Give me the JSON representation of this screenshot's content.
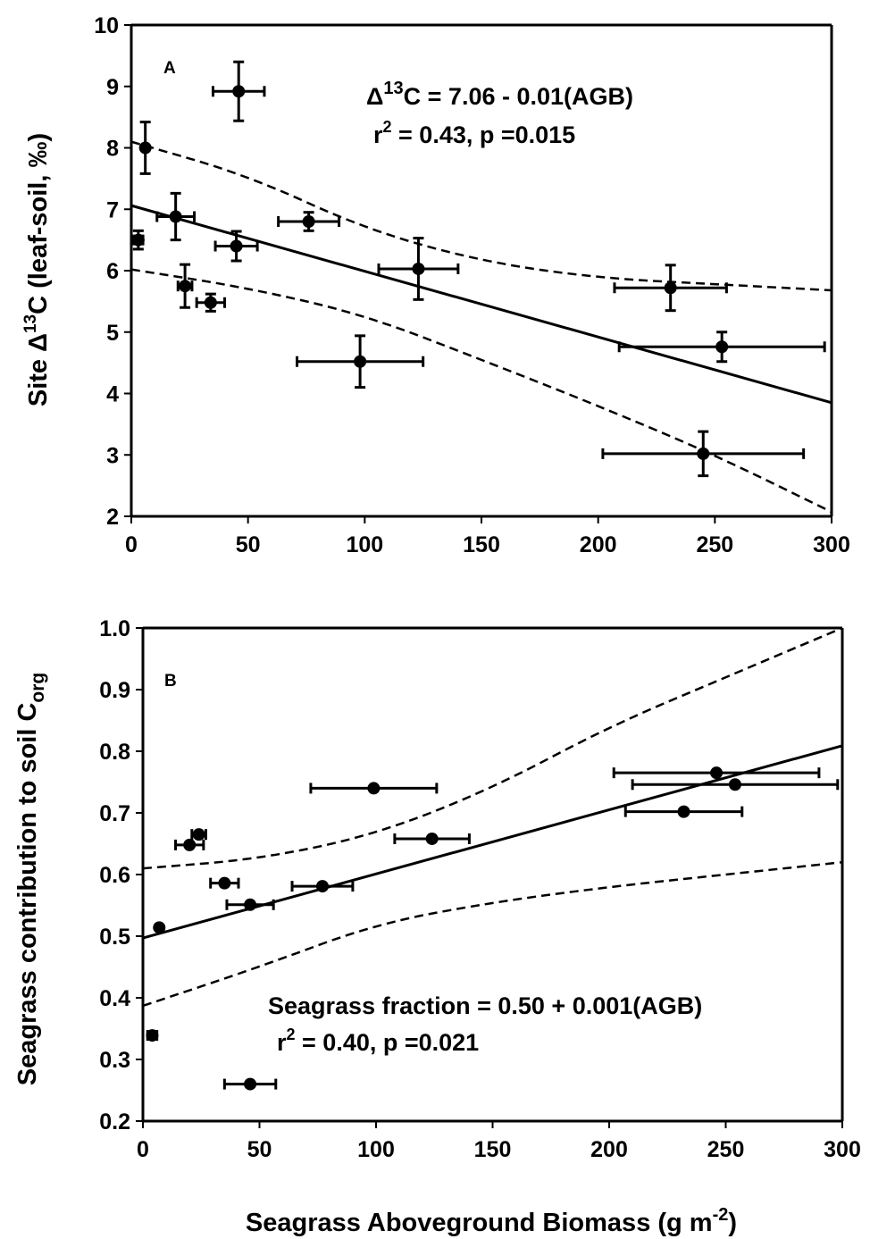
{
  "chart_data": [
    {
      "type": "scatter",
      "panel_label": "A",
      "xlim": [
        0,
        300
      ],
      "ylim": [
        2,
        10
      ],
      "xticks": [
        0,
        50,
        100,
        150,
        200,
        250,
        300
      ],
      "yticks": [
        2,
        3,
        4,
        5,
        6,
        7,
        8,
        9,
        10
      ],
      "ylabel": {
        "prefix": "Site ",
        "delta": "Δ",
        "sup": "13",
        "suffix": "C (leaf-soil, ‰)"
      },
      "equation": {
        "delta": "Δ",
        "sup": "13",
        "text": "C = 7.06 - 0.01(AGB)"
      },
      "stats": {
        "r": "r",
        "sup": "2",
        "text": " = 0.43, p =0.015"
      },
      "points": [
        {
          "x": 46,
          "y": 8.92,
          "xerr": 11,
          "yerr": 0.48
        },
        {
          "x": 6,
          "y": 8.0,
          "xerr": 0,
          "yerr": 0.42
        },
        {
          "x": 19,
          "y": 6.88,
          "xerr": 8,
          "yerr": 0.38
        },
        {
          "x": 76,
          "y": 6.8,
          "xerr": 13,
          "yerr": 0.15
        },
        {
          "x": 3,
          "y": 6.5,
          "xerr": 2,
          "yerr": 0.15
        },
        {
          "x": 45,
          "y": 6.4,
          "xerr": 9,
          "yerr": 0.24
        },
        {
          "x": 123,
          "y": 6.03,
          "xerr": 17,
          "yerr": 0.5
        },
        {
          "x": 23,
          "y": 5.75,
          "xerr": 3,
          "yerr": 0.35
        },
        {
          "x": 34,
          "y": 5.48,
          "xerr": 6,
          "yerr": 0.14
        },
        {
          "x": 231,
          "y": 5.72,
          "xerr": 24,
          "yerr": 0.37
        },
        {
          "x": 253,
          "y": 4.76,
          "xerr": 44,
          "yerr": 0.24
        },
        {
          "x": 98,
          "y": 4.52,
          "xerr": 27,
          "yerr": 0.42
        },
        {
          "x": 245,
          "y": 3.02,
          "xerr": 43,
          "yerr": 0.36
        }
      ],
      "fit": {
        "intercept": 7.06,
        "slope": -0.0107
      },
      "ci_upper": [
        [
          0,
          8.1
        ],
        [
          50,
          7.55
        ],
        [
          100,
          6.68
        ],
        [
          150,
          6.15
        ],
        [
          200,
          5.88
        ],
        [
          250,
          5.78
        ],
        [
          300,
          5.68
        ]
      ],
      "ci_lower": [
        [
          0,
          6.02
        ],
        [
          50,
          5.72
        ],
        [
          100,
          5.28
        ],
        [
          150,
          4.55
        ],
        [
          200,
          3.8
        ],
        [
          250,
          3.0
        ],
        [
          300,
          2.07
        ]
      ]
    },
    {
      "type": "scatter",
      "panel_label": "B",
      "xlim": [
        0,
        300
      ],
      "ylim": [
        0.2,
        1.0
      ],
      "xticks": [
        0,
        50,
        100,
        150,
        200,
        250,
        300
      ],
      "yticks": [
        0.2,
        0.3,
        0.4,
        0.5,
        0.6,
        0.7,
        0.8,
        0.9,
        1.0
      ],
      "ylabel": {
        "text": "Seagrass contribution to soil C",
        "sub": "org"
      },
      "xlabel": {
        "text": "Seagrass Aboveground Biomass (g m",
        "sup": "-2",
        "end": ")"
      },
      "equation": {
        "text": "Seagrass fraction = 0.50 + 0.001(AGB)"
      },
      "stats": {
        "r": "r",
        "sup": "2",
        "text": " = 0.40, p =0.021"
      },
      "points": [
        {
          "x": 99,
          "y": 0.74,
          "xerr": 27
        },
        {
          "x": 246,
          "y": 0.765,
          "xerr": 44
        },
        {
          "x": 254,
          "y": 0.746,
          "xerr": 44
        },
        {
          "x": 232,
          "y": 0.702,
          "xerr": 25
        },
        {
          "x": 24,
          "y": 0.665,
          "xerr": 3
        },
        {
          "x": 20,
          "y": 0.648,
          "xerr": 6
        },
        {
          "x": 124,
          "y": 0.658,
          "xerr": 16
        },
        {
          "x": 35,
          "y": 0.586,
          "xerr": 6
        },
        {
          "x": 77,
          "y": 0.581,
          "xerr": 13
        },
        {
          "x": 46,
          "y": 0.551,
          "xerr": 10
        },
        {
          "x": 7,
          "y": 0.514,
          "xerr": 0
        },
        {
          "x": 4,
          "y": 0.339,
          "xerr": 2
        },
        {
          "x": 46,
          "y": 0.26,
          "xerr": 11
        }
      ],
      "fit": {
        "intercept": 0.497,
        "slope": 0.00104
      },
      "ci_upper": [
        [
          0,
          0.61
        ],
        [
          50,
          0.625
        ],
        [
          100,
          0.665
        ],
        [
          150,
          0.74
        ],
        [
          200,
          0.84
        ],
        [
          250,
          0.92
        ],
        [
          300,
          1.0
        ]
      ],
      "ci_lower": [
        [
          0,
          0.387
        ],
        [
          50,
          0.45
        ],
        [
          100,
          0.52
        ],
        [
          150,
          0.555
        ],
        [
          200,
          0.58
        ],
        [
          250,
          0.6
        ],
        [
          300,
          0.62
        ]
      ]
    }
  ]
}
